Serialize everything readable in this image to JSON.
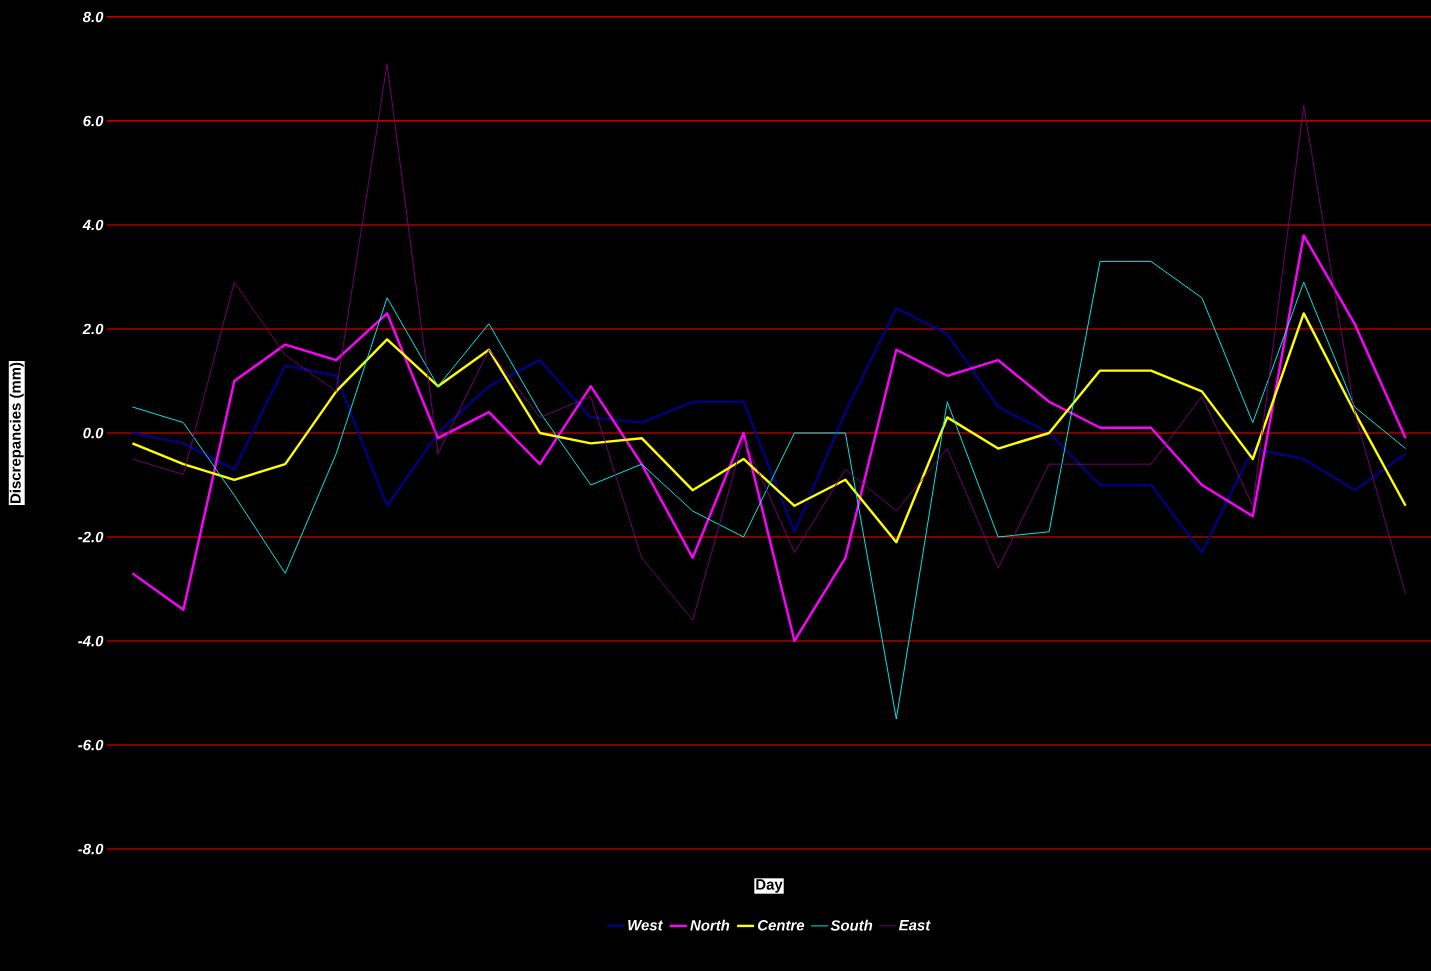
{
  "chart_data": {
    "type": "line",
    "xlabel": "Day",
    "ylabel": "Discrepancies (mm)",
    "categories": [
      null,
      null,
      null,
      null,
      null,
      null,
      null,
      null,
      null,
      null,
      null,
      null,
      null,
      null,
      null,
      null,
      null,
      null,
      null,
      null,
      null,
      null,
      null,
      null,
      null,
      null
    ],
    "ylim": [
      -8,
      8
    ],
    "yticks": [
      {
        "value": -8,
        "label": "-8.0"
      },
      {
        "value": -6,
        "label": "-6.0"
      },
      {
        "value": -4,
        "label": "-4.0"
      },
      {
        "value": -2,
        "label": "-2.0"
      },
      {
        "value": 0,
        "label": "0.0"
      },
      {
        "value": 2,
        "label": "2.0"
      },
      {
        "value": 4,
        "label": "4.0"
      },
      {
        "value": 6,
        "label": "6.0"
      },
      {
        "value": 8,
        "label": "8.0"
      }
    ],
    "grid": "y",
    "legend": "bottom",
    "marker": "none",
    "series": [
      {
        "name": "West",
        "color": "#000080",
        "values": [
          0.0,
          -0.2,
          -0.7,
          1.3,
          1.1,
          -1.4,
          0.0,
          0.9,
          1.4,
          0.3,
          0.2,
          0.6,
          0.6,
          -1.9,
          0.4,
          2.4,
          1.9,
          0.5,
          0.0,
          -1.0,
          -1.0,
          -2.3,
          -0.3,
          -0.5,
          -1.1,
          -0.4
        ]
      },
      {
        "name": "North",
        "color": "#ff00ff",
        "values": [
          -2.7,
          -3.4,
          1.0,
          1.7,
          1.4,
          2.3,
          -0.1,
          0.4,
          -0.6,
          0.9,
          -0.6,
          -2.4,
          0.0,
          -4.0,
          -2.4,
          1.6,
          1.1,
          1.4,
          0.6,
          0.1,
          0.1,
          -1.0,
          -1.6,
          3.8,
          2.1,
          -0.1
        ]
      },
      {
        "name": "Centre",
        "color": "#ffff00",
        "values": [
          -0.2,
          -0.6,
          -0.9,
          -0.6,
          0.8,
          1.8,
          0.9,
          1.6,
          0.0,
          -0.2,
          -0.1,
          -1.1,
          -0.5,
          -1.4,
          -0.9,
          -2.1,
          0.3,
          -0.3,
          0.0,
          1.2,
          1.2,
          0.8,
          -0.5,
          2.3,
          0.4,
          -1.4
        ]
      },
      {
        "name": "South",
        "color": "#00ffff",
        "values": [
          0.5,
          0.2,
          -1.2,
          -2.7,
          -0.4,
          2.6,
          0.9,
          2.1,
          0.4,
          -1.0,
          -0.6,
          -1.5,
          -2.0,
          0.0,
          0.0,
          -5.5,
          0.6,
          -2.0,
          -1.9,
          3.3,
          3.3,
          2.6,
          0.2,
          2.9,
          0.5,
          -0.3
        ]
      },
      {
        "name": "East",
        "color": "#800080",
        "values": [
          -0.5,
          -0.8,
          2.9,
          1.5,
          0.8,
          7.1,
          -0.4,
          1.6,
          0.3,
          0.7,
          -2.4,
          -3.6,
          -0.1,
          -2.3,
          -0.7,
          -1.5,
          -0.3,
          -2.6,
          -0.6,
          -0.6,
          -0.6,
          0.7,
          -1.4,
          6.3,
          0.4,
          -3.1
        ]
      }
    ]
  }
}
